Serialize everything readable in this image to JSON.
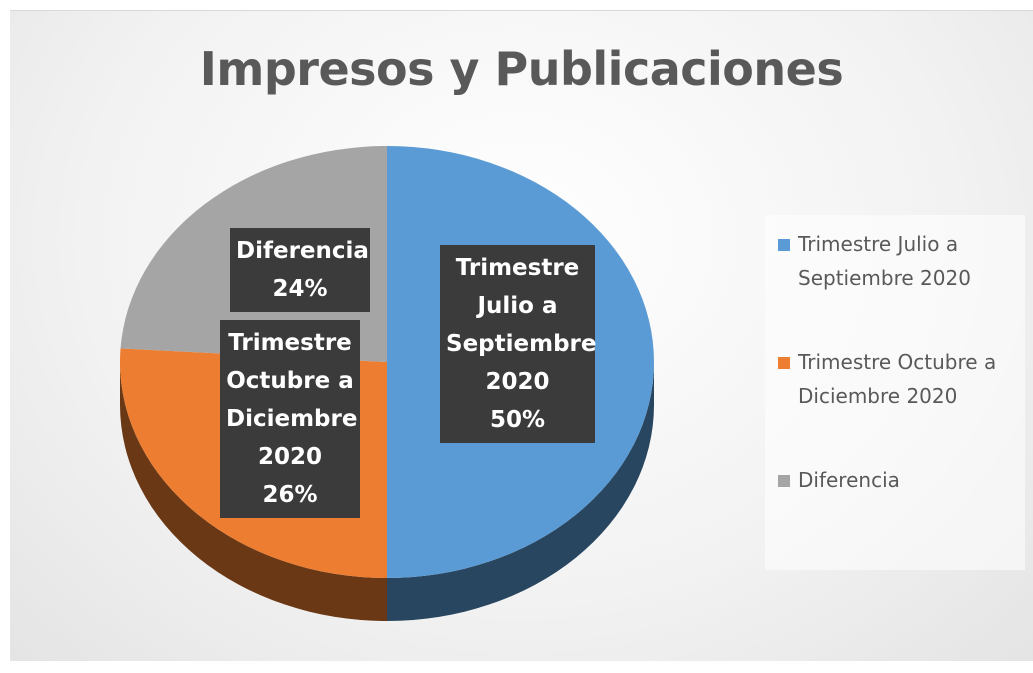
{
  "chart_data": {
    "type": "pie",
    "title": "Impresos y Publicaciones",
    "categories": [
      "Trimestre Julio a Septiembre 2020",
      "Trimestre Octubre a Diciembre 2020",
      "Diferencia"
    ],
    "values": [
      50,
      26,
      24
    ],
    "value_labels": [
      "50%",
      "26%",
      "24%"
    ],
    "colors": [
      "#5b9bd5",
      "#ed7d31",
      "#a5a5a5"
    ],
    "legend": "right"
  }
}
